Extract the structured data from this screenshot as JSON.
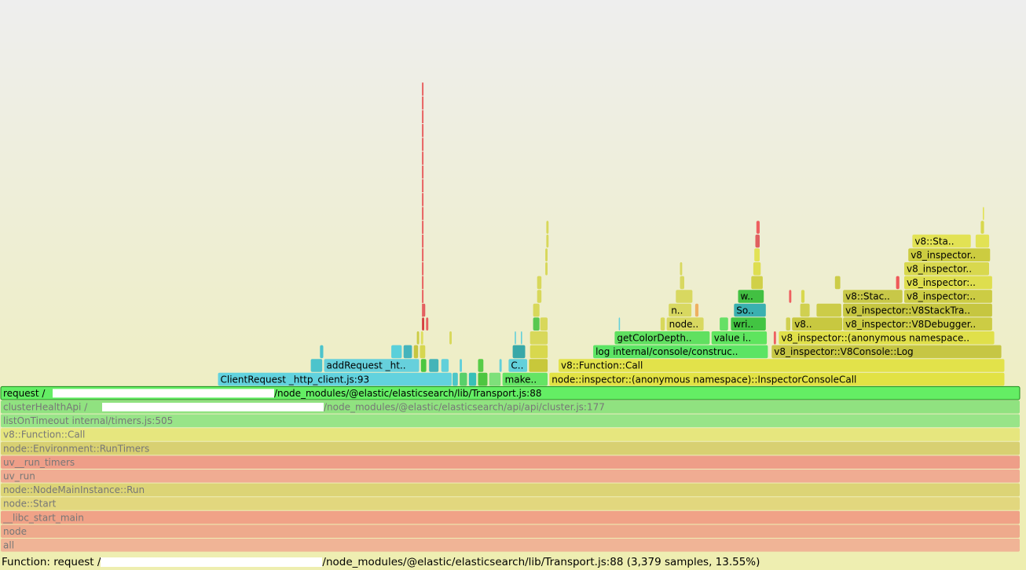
{
  "chart_data": {
    "type": "flamegraph",
    "total_samples_percent_base": 100,
    "frames": [
      {
        "depth": 0,
        "start": 0,
        "width": 100,
        "name": "all",
        "color": "#f0b496",
        "dim": true
      },
      {
        "depth": 1,
        "start": 0,
        "width": 100,
        "name": "node",
        "color": "#eeaa8c",
        "dim": true
      },
      {
        "depth": 2,
        "start": 0,
        "width": 100,
        "name": "__libc_start_main",
        "color": "#f0a287",
        "dim": true
      },
      {
        "depth": 3,
        "start": 0,
        "width": 100,
        "name": "node::Start",
        "color": "#e2d77e",
        "dim": true
      },
      {
        "depth": 4,
        "start": 0,
        "width": 100,
        "name": "node::NodeMainInstance::Run",
        "color": "#dcd476",
        "dim": true
      },
      {
        "depth": 5,
        "start": 0,
        "width": 100,
        "name": "uv_run",
        "color": "#f0ac92",
        "dim": true
      },
      {
        "depth": 6,
        "start": 0,
        "width": 100,
        "name": "uv__run_timers",
        "color": "#ee9e88",
        "dim": true
      },
      {
        "depth": 7,
        "start": 0,
        "width": 100,
        "name": "node::Environment::RunTimers",
        "color": "#d8d072",
        "dim": true
      },
      {
        "depth": 8,
        "start": 0,
        "width": 100,
        "name": "v8::Function::Call",
        "color": "#e6e67e",
        "dim": true
      },
      {
        "depth": 9,
        "start": 0,
        "width": 100,
        "name": "listOnTimeout internal/timers.js:505",
        "color": "#98e488",
        "dim": true
      },
      {
        "depth": 10,
        "start": 0,
        "width": 100,
        "name": "clusterHealthApi /[redacted]/node_modules/@elastic/elasticsearch/api/api/cluster.js:177",
        "color": "#90e280",
        "dim": true
      },
      {
        "depth": 11,
        "start": 0,
        "width": 100,
        "name": "request /[redacted]/node_modules/@elastic/elasticsearch/lib/Transport.js:88",
        "color": "#64ee64",
        "dim": false,
        "selected": true
      },
      {
        "depth": 12,
        "start": 21.3,
        "width": 23.0,
        "name": "ClientRequest _http_client.js:93",
        "color": "#62d2de"
      },
      {
        "depth": 12,
        "start": 44.3,
        "width": 0.6,
        "name": "",
        "color": "#4cc6c8"
      },
      {
        "depth": 12,
        "start": 45.0,
        "width": 0.8,
        "name": "",
        "color": "#58d06a"
      },
      {
        "depth": 12,
        "start": 45.9,
        "width": 0.8,
        "name": "",
        "color": "#38c0b8"
      },
      {
        "depth": 12,
        "start": 46.8,
        "width": 1.0,
        "name": "",
        "color": "#4ec640"
      },
      {
        "depth": 12,
        "start": 47.9,
        "width": 1.2,
        "name": "",
        "color": "#7ee07a"
      },
      {
        "depth": 12,
        "start": 49.2,
        "width": 4.5,
        "name": "make..",
        "color": "#64e464"
      },
      {
        "depth": 12,
        "start": 53.8,
        "width": 44.7,
        "name": "node::inspector::(anonymous namespace)::InspectorConsoleCall",
        "color": "#e2e244"
      },
      {
        "depth": 13,
        "start": 30.4,
        "width": 1.2,
        "name": "",
        "color": "#4cc4cc"
      },
      {
        "depth": 13,
        "start": 31.7,
        "width": 9.4,
        "name": "addRequest _ht..",
        "color": "#66d0dc"
      },
      {
        "depth": 13,
        "start": 41.2,
        "width": 0.6,
        "name": "",
        "color": "#4cc640"
      },
      {
        "depth": 13,
        "start": 42.0,
        "width": 1.0,
        "name": "",
        "color": "#44b4b8"
      },
      {
        "depth": 13,
        "start": 43.2,
        "width": 0.8,
        "name": "",
        "color": "#62d0da"
      },
      {
        "depth": 13,
        "start": 45.0,
        "width": 0.3,
        "name": "",
        "color": "#62d0da"
      },
      {
        "depth": 13,
        "start": 46.8,
        "width": 0.6,
        "name": "",
        "color": "#58cc48"
      },
      {
        "depth": 13,
        "start": 48.9,
        "width": 0.3,
        "name": "",
        "color": "#62d0da"
      },
      {
        "depth": 13,
        "start": 49.8,
        "width": 1.9,
        "name": "C..",
        "color": "#62d0da"
      },
      {
        "depth": 13,
        "start": 51.8,
        "width": 1.9,
        "name": "",
        "color": "#c8c83a"
      },
      {
        "depth": 13,
        "start": 54.7,
        "width": 43.8,
        "name": "v8::Function::Call",
        "color": "#e2e24a"
      },
      {
        "depth": 14,
        "start": 31.3,
        "width": 0.4,
        "name": "",
        "color": "#4cc4cc"
      },
      {
        "depth": 14,
        "start": 38.3,
        "width": 1.1,
        "name": "",
        "color": "#5ad0da"
      },
      {
        "depth": 14,
        "start": 39.5,
        "width": 0.9,
        "name": "",
        "color": "#44b4bc"
      },
      {
        "depth": 14,
        "start": 40.5,
        "width": 0.5,
        "name": "",
        "color": "#c6c640"
      },
      {
        "depth": 14,
        "start": 41.1,
        "width": 0.6,
        "name": "",
        "color": "#d6d650"
      },
      {
        "depth": 14,
        "start": 50.2,
        "width": 1.3,
        "name": "",
        "color": "#38a8a8"
      },
      {
        "depth": 14,
        "start": 51.9,
        "width": 1.8,
        "name": "",
        "color": "#d8d84e"
      },
      {
        "depth": 14,
        "start": 58.1,
        "width": 17.2,
        "name": "log internal/console/constructo..",
        "color": "#5ce464"
      },
      {
        "depth": 14,
        "start": 75.6,
        "width": 22.6,
        "name": "v8_inspector::V8Console::Log",
        "color": "#c6c644"
      },
      {
        "depth": 15,
        "start": 40.8,
        "width": 0.3,
        "name": "",
        "color": "#cccc44"
      },
      {
        "depth": 15,
        "start": 41.2,
        "width": 0.3,
        "name": "",
        "color": "#dede5e"
      },
      {
        "depth": 15,
        "start": 44.0,
        "width": 0.3,
        "name": "",
        "color": "#d8d85a"
      },
      {
        "depth": 15,
        "start": 50.4,
        "width": 0.2,
        "name": "",
        "color": "#62d0da"
      },
      {
        "depth": 15,
        "start": 51.0,
        "width": 0.2,
        "name": "",
        "color": "#62d0da"
      },
      {
        "depth": 15,
        "start": 51.9,
        "width": 1.8,
        "name": "",
        "color": "#d8d85a"
      },
      {
        "depth": 15,
        "start": 60.2,
        "width": 9.4,
        "name": "getColorDepth..",
        "color": "#60e060"
      },
      {
        "depth": 15,
        "start": 69.7,
        "width": 5.5,
        "name": "value in..",
        "color": "#5ee45e"
      },
      {
        "depth": 15,
        "start": 75.8,
        "width": 0.3,
        "name": "",
        "color": "#ee6060"
      },
      {
        "depth": 15,
        "start": 76.3,
        "width": 21.2,
        "name": "v8_inspector::(anonymous namespace..",
        "color": "#e0e04a"
      },
      {
        "depth": 16,
        "start": 41.3,
        "width": 0.3,
        "name": "",
        "color": "#d64040"
      },
      {
        "depth": 16,
        "start": 41.7,
        "width": 0.3,
        "name": "",
        "color": "#e66060"
      },
      {
        "depth": 16,
        "start": 52.2,
        "width": 0.7,
        "name": "",
        "color": "#58c850"
      },
      {
        "depth": 16,
        "start": 52.9,
        "width": 0.8,
        "name": "",
        "color": "#d8d85a"
      },
      {
        "depth": 16,
        "start": 60.6,
        "width": 0.2,
        "name": "",
        "color": "#62d0da"
      },
      {
        "depth": 16,
        "start": 64.7,
        "width": 0.5,
        "name": "",
        "color": "#d8d85a"
      },
      {
        "depth": 16,
        "start": 65.3,
        "width": 3.7,
        "name": "node..",
        "color": "#d8d860"
      },
      {
        "depth": 16,
        "start": 70.5,
        "width": 0.9,
        "name": "",
        "color": "#66e066"
      },
      {
        "depth": 16,
        "start": 71.6,
        "width": 3.5,
        "name": "wri..",
        "color": "#42c442"
      },
      {
        "depth": 16,
        "start": 77.0,
        "width": 0.5,
        "name": "",
        "color": "#d0d050"
      },
      {
        "depth": 16,
        "start": 77.6,
        "width": 5.0,
        "name": "v8..",
        "color": "#c8c840"
      },
      {
        "depth": 16,
        "start": 82.6,
        "width": 14.7,
        "name": "v8_inspector::V8Debugger..",
        "color": "#cccc44"
      },
      {
        "depth": 17,
        "start": 41.4,
        "width": 0.3,
        "name": "",
        "color": "#e06060"
      },
      {
        "depth": 17,
        "start": 52.2,
        "width": 0.7,
        "name": "",
        "color": "#d8d85a"
      },
      {
        "depth": 17,
        "start": 65.5,
        "width": 2.3,
        "name": "n..",
        "color": "#d8d860"
      },
      {
        "depth": 17,
        "start": 68.1,
        "width": 0.4,
        "name": "",
        "color": "#eeb060"
      },
      {
        "depth": 17,
        "start": 71.9,
        "width": 3.2,
        "name": "So..",
        "color": "#3ab0b0"
      },
      {
        "depth": 17,
        "start": 78.4,
        "width": 1.0,
        "name": "",
        "color": "#d0d050"
      },
      {
        "depth": 17,
        "start": 80.0,
        "width": 2.5,
        "name": "",
        "color": "#cccc48"
      },
      {
        "depth": 17,
        "start": 82.6,
        "width": 14.7,
        "name": "v8_inspector::V8StackTra..",
        "color": "#c6c640"
      },
      {
        "depth": 18,
        "start": 52.6,
        "width": 0.5,
        "name": "",
        "color": "#d8d85a"
      },
      {
        "depth": 18,
        "start": 66.2,
        "width": 1.7,
        "name": "",
        "color": "#d8d860"
      },
      {
        "depth": 18,
        "start": 72.3,
        "width": 2.6,
        "name": "wr..",
        "color": "#42c042"
      },
      {
        "depth": 18,
        "start": 77.3,
        "width": 0.3,
        "name": "",
        "color": "#ee6060"
      },
      {
        "depth": 18,
        "start": 78.5,
        "width": 0.4,
        "name": "",
        "color": "#d8d84e"
      },
      {
        "depth": 18,
        "start": 82.6,
        "width": 5.9,
        "name": "v8::Stac..",
        "color": "#c8c848"
      },
      {
        "depth": 18,
        "start": 88.6,
        "width": 8.7,
        "name": "v8_inspector::..",
        "color": "#cccc44"
      },
      {
        "depth": 19,
        "start": 52.6,
        "width": 0.5,
        "name": "",
        "color": "#d8d85a"
      },
      {
        "depth": 19,
        "start": 66.6,
        "width": 0.5,
        "name": "",
        "color": "#d8d860"
      },
      {
        "depth": 19,
        "start": 73.6,
        "width": 1.2,
        "name": "",
        "color": "#d0d048"
      },
      {
        "depth": 19,
        "start": 81.8,
        "width": 0.6,
        "name": "",
        "color": "#cccc48"
      },
      {
        "depth": 19,
        "start": 87.8,
        "width": 0.4,
        "name": "",
        "color": "#ee5858"
      },
      {
        "depth": 19,
        "start": 88.6,
        "width": 8.7,
        "name": "v8_inspector::..",
        "color": "#dede4e"
      },
      {
        "depth": 20,
        "start": 53.4,
        "width": 0.3,
        "name": "",
        "color": "#d8d85a"
      },
      {
        "depth": 20,
        "start": 66.6,
        "width": 0.3,
        "name": "",
        "color": "#d8d860"
      },
      {
        "depth": 20,
        "start": 73.8,
        "width": 0.8,
        "name": "",
        "color": "#dede50"
      },
      {
        "depth": 20,
        "start": 88.6,
        "width": 8.4,
        "name": "v8_inspector::..",
        "color": "#d8d84e"
      },
      {
        "depth": 21,
        "start": 53.4,
        "width": 0.3,
        "name": "",
        "color": "#d8d85a"
      },
      {
        "depth": 21,
        "start": 73.9,
        "width": 0.6,
        "name": "",
        "color": "#e2e254"
      },
      {
        "depth": 21,
        "start": 89.0,
        "width": 8.1,
        "name": "v8_inspector::..",
        "color": "#cccc40"
      },
      {
        "depth": 22,
        "start": 53.5,
        "width": 0.3,
        "name": "",
        "color": "#d8d85a"
      },
      {
        "depth": 22,
        "start": 74.0,
        "width": 0.5,
        "name": "",
        "color": "#e06060"
      },
      {
        "depth": 22,
        "start": 89.4,
        "width": 5.8,
        "name": "v8::Stac..",
        "color": "#e2e254"
      },
      {
        "depth": 22,
        "start": 95.6,
        "width": 1.4,
        "name": "",
        "color": "#e2e254"
      },
      {
        "depth": 23,
        "start": 53.5,
        "width": 0.3,
        "name": "",
        "color": "#d8d85a"
      },
      {
        "depth": 23,
        "start": 74.1,
        "width": 0.4,
        "name": "",
        "color": "#ee6060"
      },
      {
        "depth": 23,
        "start": 96.1,
        "width": 0.4,
        "name": "",
        "color": "#d8d84e"
      },
      {
        "depth": 24,
        "start": 96.3,
        "width": 0.2,
        "name": "",
        "color": "#e2e254"
      }
    ],
    "spike": {
      "start": 41.3,
      "width": 0.2,
      "top_depth": 33,
      "base_depth": 17,
      "color": "#e86262"
    }
  },
  "status": {
    "prefix": "Function: request /",
    "suffix": "/node_modules/@elastic/elasticsearch/lib/Transport.js:88 (3,379 samples, 13.55%)"
  }
}
